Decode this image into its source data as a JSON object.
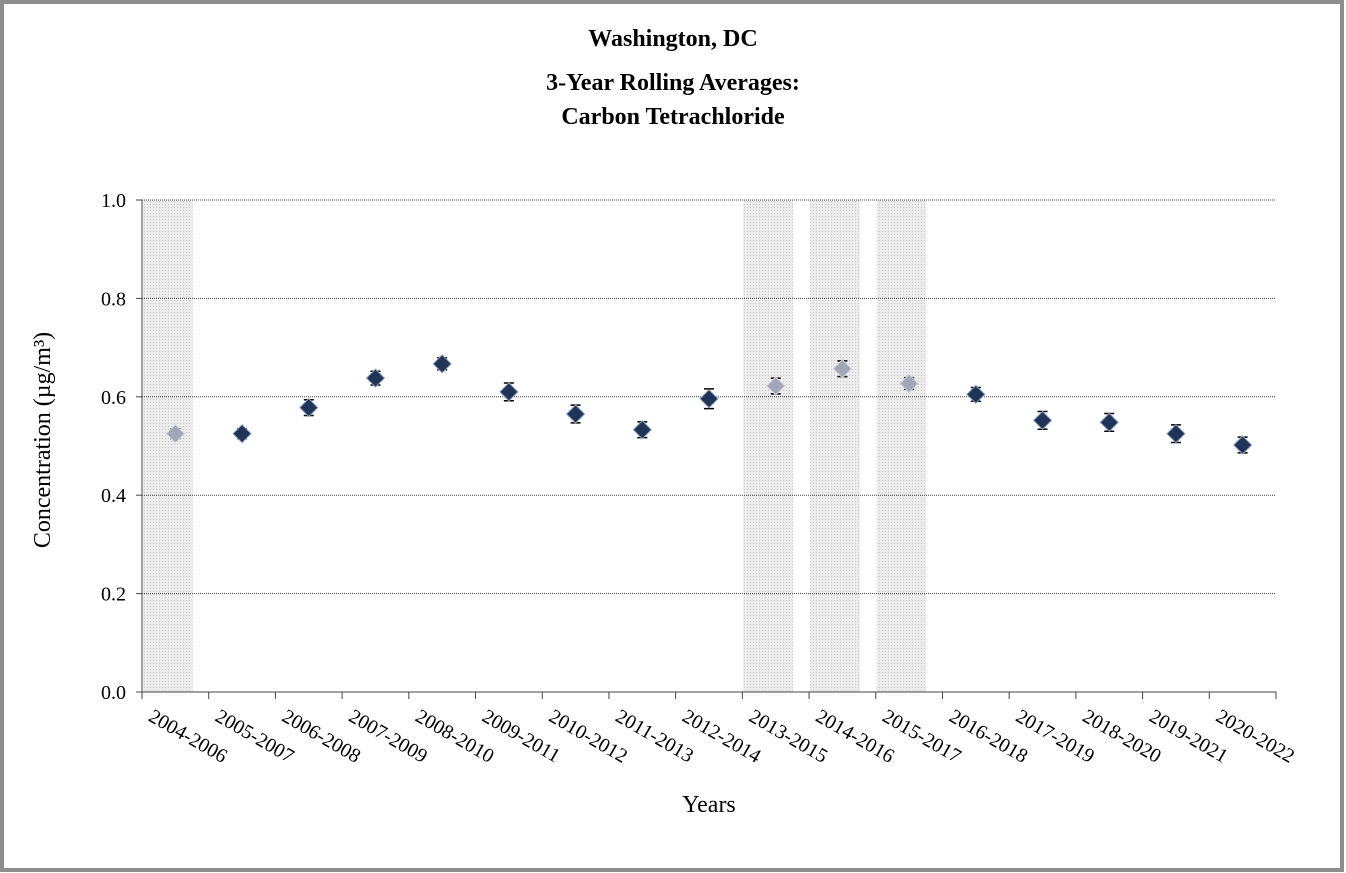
{
  "chart_data": {
    "type": "scatter",
    "title": [
      "Washington, DC",
      "3-Year Rolling Averages:",
      "Carbon Tetrachloride"
    ],
    "xlabel": "Years",
    "ylabel": "Concentration (µg/m³)",
    "categories": [
      "2004-2006",
      "2005-2007",
      "2006-2008",
      "2007-2009",
      "2008-2010",
      "2009-2011",
      "2010-2012",
      "2011-2013",
      "2012-2014",
      "2013-2015",
      "2014-2016",
      "2015-2017",
      "2016-2018",
      "2017-2019",
      "2018-2020",
      "2019-2021",
      "2020-2022"
    ],
    "values": [
      0.525,
      0.525,
      0.578,
      0.638,
      0.667,
      0.61,
      0.565,
      0.533,
      0.596,
      0.622,
      0.657,
      0.627,
      0.605,
      0.552,
      0.548,
      0.525,
      0.502
    ],
    "errors": [
      0.01,
      0.01,
      0.016,
      0.014,
      0.012,
      0.018,
      0.018,
      0.016,
      0.02,
      0.016,
      0.016,
      0.012,
      0.014,
      0.018,
      0.018,
      0.018,
      0.016
    ],
    "colors": [
      "#a3a6b8",
      "#1f3457",
      "#1f3457",
      "#1f3457",
      "#1f3457",
      "#1f3457",
      "#1f3457",
      "#1f3457",
      "#1f3457",
      "#a3a6b8",
      "#a3a6b8",
      "#a3a6b8",
      "#1f3457",
      "#1f3457",
      "#1f3457",
      "#1f3457",
      "#1f3457"
    ],
    "shaded": [
      true,
      false,
      false,
      false,
      false,
      false,
      false,
      false,
      false,
      true,
      true,
      true,
      false,
      false,
      false,
      false,
      false
    ],
    "ylim": [
      0,
      1
    ],
    "yticks": [
      {
        "value": 0,
        "label": "0.0"
      },
      {
        "value": 0.2,
        "label": "0.2"
      },
      {
        "value": 0.4,
        "label": "0.4"
      },
      {
        "value": 0.6,
        "label": "0.6"
      },
      {
        "value": 0.8,
        "label": "0.8"
      },
      {
        "value": 1,
        "label": "1.0"
      }
    ],
    "grid": true
  }
}
